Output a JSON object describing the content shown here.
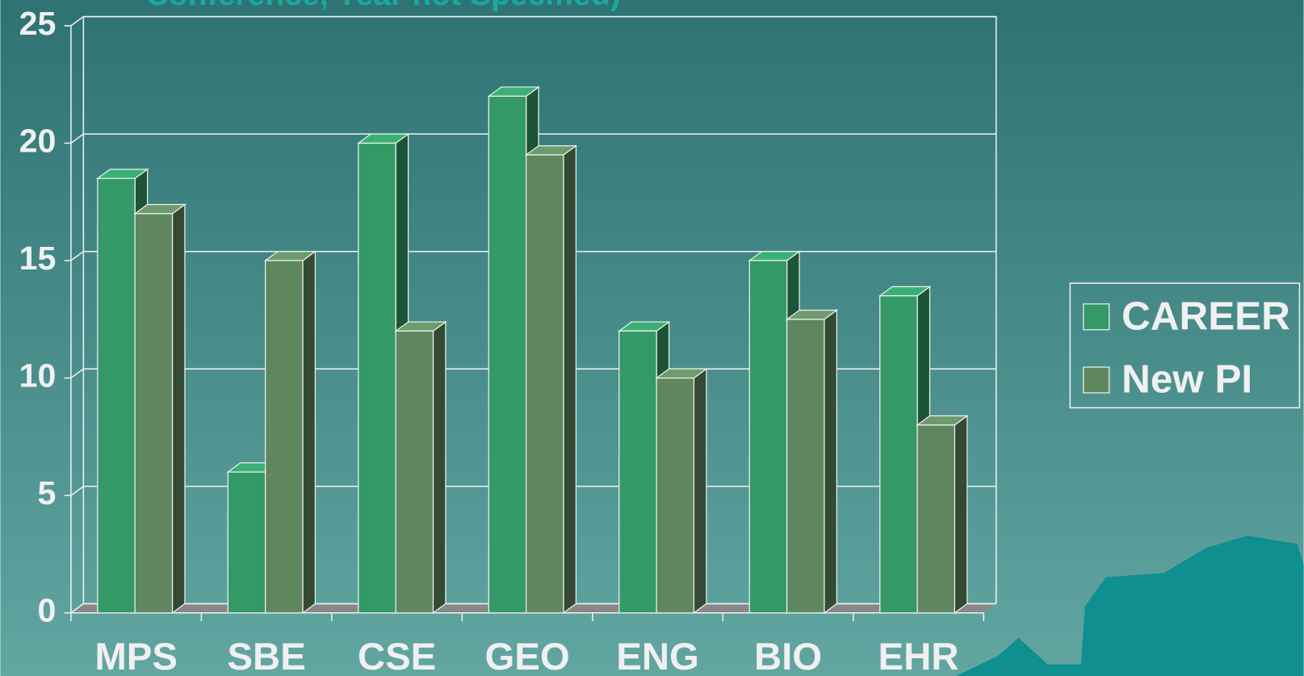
{
  "chart_data": {
    "type": "bar3d",
    "title": "Conference, Year not Specified)",
    "categories": [
      "MPS",
      "SBE",
      "CSE",
      "GEO",
      "ENG",
      "BIO",
      "EHR"
    ],
    "series": [
      {
        "name": "CAREER",
        "color": "#339966",
        "values": [
          18.5,
          6,
          20,
          22,
          12,
          15,
          13.5
        ]
      },
      {
        "name": "New PI",
        "color": "#5f875f",
        "values": [
          17,
          15,
          12,
          19.5,
          10,
          12.5,
          8
        ]
      }
    ],
    "ylim": [
      0,
      25
    ],
    "yticks": [
      0,
      5,
      10,
      15,
      20,
      25
    ],
    "grid": true,
    "legend": "right"
  }
}
